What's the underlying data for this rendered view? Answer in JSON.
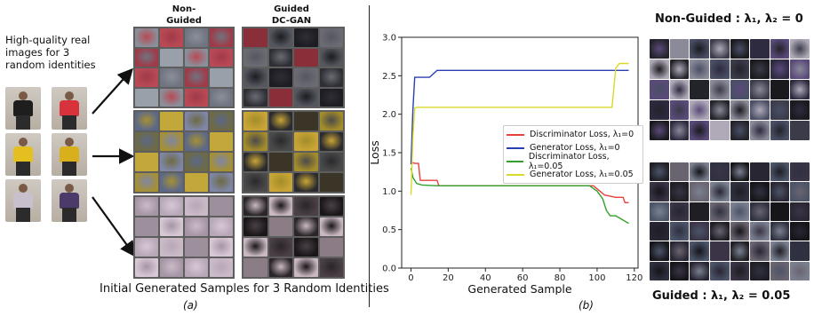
{
  "left_panel": {
    "intro_text": "High-quality real images for 3 random identities",
    "column_labels": [
      "Non-Guided DC-GAN",
      "Guided DC-GAN"
    ],
    "caption": "Initial Generated Samples for 3 Random Identities",
    "panel_label": "(a)",
    "identities": [
      {
        "shirt_colors": [
          "#1e1e1e",
          "#d8323a"
        ]
      },
      {
        "shirt_colors": [
          "#e4bf20",
          "#d8b01c"
        ]
      },
      {
        "shirt_colors": [
          "#c8c0cc",
          "#4a3b6a"
        ]
      }
    ]
  },
  "chart_data": {
    "type": "line",
    "title": "",
    "xlabel": "Generated Sample",
    "ylabel": "Loss",
    "xlim": [
      -5,
      122
    ],
    "ylim": [
      0.0,
      3.0
    ],
    "xticks": [
      "0",
      "20",
      "40",
      "60",
      "80",
      "100",
      "120"
    ],
    "yticks": [
      "0.0",
      "0.5",
      "1.0",
      "1.5",
      "2.0",
      "2.5",
      "3.0"
    ],
    "grid": false,
    "legend_position": "center-right",
    "series": [
      {
        "name": "Discriminator Loss, λ₁=0",
        "color": "#e8403a",
        "x": [
          0,
          1,
          2,
          4,
          5,
          14,
          15,
          98,
          100,
          104,
          110,
          114,
          115,
          117
        ],
        "y": [
          1.35,
          1.37,
          1.36,
          1.36,
          1.14,
          1.14,
          1.07,
          1.07,
          1.03,
          0.95,
          0.92,
          0.92,
          0.85,
          0.85
        ]
      },
      {
        "name": "Generator Loss, λ₁=0",
        "color": "#2b3fb0",
        "x": [
          0,
          1,
          2,
          10,
          14,
          15,
          117
        ],
        "y": [
          1.35,
          2.05,
          2.48,
          2.48,
          2.57,
          2.57,
          2.57
        ]
      },
      {
        "name": "Discriminator Loss, λ₁=0.05",
        "color": "#32a02a",
        "x": [
          0,
          1,
          3,
          6,
          14,
          96,
          100,
          103,
          105,
          107,
          110,
          117
        ],
        "y": [
          1.3,
          1.18,
          1.1,
          1.08,
          1.07,
          1.07,
          1.0,
          0.9,
          0.75,
          0.68,
          0.68,
          0.58
        ]
      },
      {
        "name": "Generator Loss, λ₁=0.05",
        "color": "#d9d92a",
        "x": [
          0,
          1,
          2,
          3,
          108,
          110,
          112,
          117
        ],
        "y": [
          0.95,
          1.7,
          2.08,
          2.09,
          2.09,
          2.6,
          2.66,
          2.66
        ]
      }
    ]
  },
  "right_panel": {
    "top_title": "Non-Guided : λ₁, λ₂ = 0",
    "bottom_title": "Guided : λ₁, λ₂ = 0.05",
    "panel_label": "(b)"
  }
}
